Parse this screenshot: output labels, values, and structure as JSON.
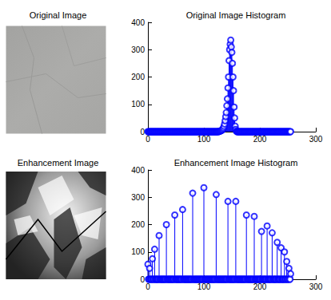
{
  "images": [
    {
      "title": "Original Image"
    },
    {
      "title": "Enhancement Image"
    }
  ],
  "chart_data": [
    {
      "type": "stem",
      "title": "Original Image Histogram",
      "color": "#0000ff",
      "marker": "circle",
      "xlim": [
        0,
        300
      ],
      "xticks": [
        0,
        100,
        200,
        300
      ],
      "ylim": [
        0,
        400
      ],
      "yticks": [
        0,
        100,
        200,
        300,
        400
      ],
      "x": [
        0,
        1,
        2,
        3,
        4,
        5,
        6,
        7,
        8,
        9,
        10,
        11,
        12,
        13,
        14,
        15,
        16,
        17,
        18,
        19,
        20,
        21,
        22,
        23,
        24,
        25,
        26,
        27,
        28,
        29,
        30,
        31,
        32,
        33,
        34,
        35,
        36,
        37,
        38,
        39,
        40,
        41,
        42,
        43,
        44,
        45,
        46,
        47,
        48,
        49,
        50,
        51,
        52,
        53,
        54,
        55,
        56,
        57,
        58,
        59,
        60,
        61,
        62,
        63,
        64,
        65,
        66,
        67,
        68,
        69,
        70,
        71,
        72,
        73,
        74,
        75,
        76,
        77,
        78,
        79,
        80,
        81,
        82,
        83,
        84,
        85,
        86,
        87,
        88,
        89,
        90,
        91,
        92,
        93,
        94,
        95,
        96,
        97,
        98,
        99,
        100,
        101,
        102,
        103,
        104,
        105,
        106,
        107,
        108,
        109,
        110,
        111,
        112,
        113,
        114,
        115,
        116,
        117,
        118,
        119,
        120,
        121,
        122,
        123,
        124,
        125,
        126,
        127,
        128,
        129,
        130,
        131,
        132,
        133,
        134,
        135,
        136,
        137,
        138,
        139,
        140,
        141,
        142,
        143,
        144,
        145,
        146,
        147,
        148,
        149,
        150,
        151,
        152,
        153,
        154,
        155,
        156,
        157,
        158,
        159,
        160,
        161,
        162,
        163,
        164,
        165,
        166,
        167,
        168,
        169,
        170,
        171,
        172,
        173,
        174,
        175,
        176,
        177,
        178,
        179,
        180,
        181,
        182,
        183,
        184,
        185,
        186,
        187,
        188,
        189,
        190,
        191,
        192,
        193,
        194,
        195,
        196,
        197,
        198,
        199,
        200,
        201,
        202,
        203,
        204,
        205,
        206,
        207,
        208,
        209,
        210,
        211,
        212,
        213,
        214,
        215,
        216,
        217,
        218,
        219,
        220,
        221,
        222,
        223,
        224,
        225,
        226,
        227,
        228,
        229,
        230,
        231,
        232,
        233,
        234,
        235,
        236,
        237,
        238,
        239,
        240,
        241,
        242,
        243,
        244,
        245,
        246,
        247,
        248,
        249,
        250,
        251,
        252,
        253,
        254,
        255
      ],
      "values": [
        0,
        0,
        0,
        0,
        0,
        0,
        0,
        0,
        0,
        0,
        0,
        0,
        0,
        0,
        0,
        0,
        0,
        0,
        0,
        0,
        0,
        0,
        0,
        0,
        0,
        0,
        0,
        0,
        0,
        0,
        0,
        0,
        0,
        0,
        0,
        0,
        0,
        0,
        0,
        0,
        0,
        0,
        0,
        0,
        0,
        0,
        0,
        0,
        0,
        0,
        0,
        0,
        0,
        0,
        0,
        0,
        0,
        0,
        0,
        0,
        0,
        0,
        0,
        0,
        0,
        0,
        0,
        0,
        0,
        0,
        0,
        0,
        0,
        0,
        0,
        0,
        0,
        0,
        0,
        0,
        0,
        0,
        0,
        0,
        0,
        0,
        0,
        0,
        0,
        0,
        0,
        0,
        0,
        0,
        0,
        0,
        0,
        0,
        0,
        0,
        0,
        0,
        0,
        0,
        0,
        0,
        0,
        0,
        0,
        0,
        0,
        0,
        0,
        0,
        0,
        0,
        0,
        0,
        0,
        0,
        0,
        0,
        0,
        0,
        0,
        0,
        0,
        1,
        1,
        2,
        3,
        4,
        5,
        7,
        10,
        14,
        20,
        28,
        40,
        55,
        70,
        95,
        120,
        160,
        200,
        260,
        300,
        320,
        335,
        310,
        290,
        250,
        200,
        150,
        90,
        50,
        20,
        8,
        2,
        0,
        0,
        0,
        0,
        0,
        0,
        0,
        0,
        0,
        0,
        0,
        0,
        0,
        0,
        0,
        0,
        0,
        0,
        0,
        0,
        0,
        0,
        0,
        0,
        0,
        0,
        0,
        0,
        0,
        0,
        0,
        0,
        0,
        0,
        0,
        0,
        0,
        0,
        0,
        0,
        0,
        0,
        0,
        0,
        0,
        0,
        0,
        0,
        0,
        0,
        0,
        0,
        0,
        0,
        0,
        0,
        0,
        0,
        0,
        0,
        0,
        0,
        0,
        0,
        0,
        0,
        0,
        0,
        0,
        0,
        0,
        0,
        0,
        0,
        0,
        0,
        0,
        0,
        0,
        0,
        0,
        0,
        0,
        0,
        0,
        0,
        0,
        0,
        0,
        0,
        0,
        0,
        0,
        0,
        0,
        0,
        0
      ]
    },
    {
      "type": "stem",
      "title": "Enhancement Image Histogram",
      "color": "#0000ff",
      "marker": "circle",
      "xlim": [
        0,
        300
      ],
      "xticks": [
        0,
        100,
        200,
        300
      ],
      "ylim": [
        0,
        400
      ],
      "yticks": [
        0,
        100,
        200,
        300,
        400
      ],
      "x": [
        0,
        1,
        2,
        3,
        4,
        5,
        6,
        7,
        8,
        9,
        10,
        11,
        12,
        13,
        14,
        15,
        16,
        17,
        18,
        19,
        20,
        21,
        22,
        23,
        24,
        25,
        26,
        27,
        28,
        29,
        30,
        31,
        32,
        33,
        34,
        35,
        36,
        37,
        38,
        39,
        40,
        41,
        42,
        43,
        44,
        45,
        46,
        47,
        48,
        49,
        50,
        51,
        52,
        53,
        54,
        55,
        56,
        57,
        58,
        59,
        60,
        61,
        62,
        63,
        64,
        65,
        66,
        67,
        68,
        69,
        70,
        71,
        72,
        73,
        74,
        75,
        76,
        77,
        78,
        79,
        80,
        81,
        82,
        83,
        84,
        85,
        86,
        87,
        88,
        89,
        90,
        91,
        92,
        93,
        94,
        95,
        96,
        97,
        98,
        99,
        100,
        101,
        102,
        103,
        104,
        105,
        106,
        107,
        108,
        109,
        110,
        111,
        112,
        113,
        114,
        115,
        116,
        117,
        118,
        119,
        120,
        121,
        122,
        123,
        124,
        125,
        126,
        127,
        128,
        129,
        130,
        131,
        132,
        133,
        134,
        135,
        136,
        137,
        138,
        139,
        140,
        141,
        142,
        143,
        144,
        145,
        146,
        147,
        148,
        149,
        150,
        151,
        152,
        153,
        154,
        155,
        156,
        157,
        158,
        159,
        160,
        161,
        162,
        163,
        164,
        165,
        166,
        167,
        168,
        169,
        170,
        171,
        172,
        173,
        174,
        175,
        176,
        177,
        178,
        179,
        180,
        181,
        182,
        183,
        184,
        185,
        186,
        187,
        188,
        189,
        190,
        191,
        192,
        193,
        194,
        195,
        196,
        197,
        198,
        199,
        200,
        201,
        202,
        203,
        204,
        205,
        206,
        207,
        208,
        209,
        210,
        211,
        212,
        213,
        214,
        215,
        216,
        217,
        218,
        219,
        220,
        221,
        222,
        223,
        224,
        225,
        226,
        227,
        228,
        229,
        230,
        231,
        232,
        233,
        234,
        235,
        236,
        237,
        238,
        239,
        240,
        241,
        242,
        243,
        244,
        245,
        246,
        247,
        248,
        249,
        250,
        251,
        252,
        253,
        254,
        255
      ],
      "values": [
        55,
        0,
        0,
        40,
        0,
        0,
        0,
        0,
        75,
        0,
        0,
        0,
        110,
        0,
        0,
        0,
        0,
        0,
        0,
        0,
        160,
        0,
        0,
        0,
        0,
        0,
        0,
        0,
        0,
        0,
        0,
        0,
        0,
        200,
        0,
        0,
        0,
        0,
        0,
        0,
        0,
        0,
        0,
        0,
        0,
        0,
        0,
        0,
        235,
        0,
        0,
        0,
        0,
        0,
        0,
        0,
        0,
        0,
        0,
        0,
        0,
        0,
        255,
        0,
        0,
        0,
        0,
        0,
        0,
        0,
        0,
        0,
        0,
        0,
        0,
        0,
        0,
        0,
        0,
        0,
        315,
        0,
        0,
        0,
        0,
        0,
        0,
        0,
        0,
        0,
        0,
        0,
        0,
        0,
        0,
        0,
        0,
        0,
        0,
        0,
        335,
        0,
        0,
        0,
        0,
        0,
        0,
        0,
        0,
        0,
        0,
        0,
        0,
        0,
        0,
        0,
        0,
        0,
        0,
        0,
        0,
        0,
        310,
        0,
        0,
        0,
        0,
        0,
        0,
        0,
        0,
        0,
        0,
        0,
        0,
        0,
        0,
        0,
        0,
        0,
        0,
        0,
        0,
        285,
        0,
        0,
        0,
        0,
        0,
        0,
        0,
        0,
        0,
        0,
        0,
        0,
        0,
        285,
        0,
        0,
        0,
        0,
        0,
        0,
        0,
        0,
        0,
        0,
        0,
        0,
        0,
        0,
        0,
        0,
        0,
        0,
        235,
        0,
        0,
        0,
        0,
        0,
        0,
        0,
        0,
        0,
        0,
        0,
        0,
        0,
        230,
        0,
        0,
        0,
        0,
        0,
        0,
        0,
        0,
        0,
        0,
        0,
        0,
        175,
        0,
        0,
        0,
        0,
        0,
        0,
        0,
        0,
        0,
        195,
        0,
        0,
        0,
        0,
        0,
        0,
        0,
        0,
        170,
        0,
        0,
        0,
        0,
        0,
        0,
        0,
        0,
        135,
        0,
        0,
        0,
        0,
        0,
        0,
        115,
        0,
        0,
        0,
        0,
        0,
        100,
        0,
        0,
        0,
        65,
        0,
        0,
        0,
        40,
        0,
        0,
        20
      ]
    }
  ]
}
